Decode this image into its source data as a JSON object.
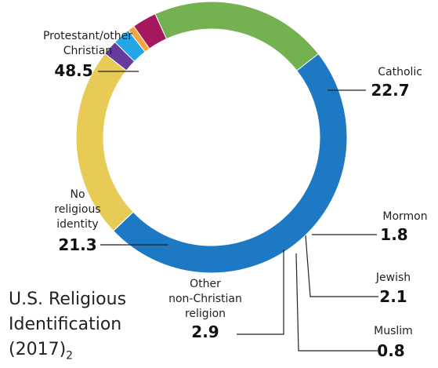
{
  "chart_data": {
    "type": "pie",
    "categories": [
      "Protestant/other Christian",
      "Catholic",
      "Mormon",
      "Jewish",
      "Muslim",
      "Other non-Christian religion",
      "No religious identity"
    ],
    "values": [
      48.5,
      22.7,
      1.8,
      2.1,
      0.8,
      2.9,
      21.3
    ],
    "value_labels": [
      "48.5",
      "22.7",
      "1.8",
      "2.1",
      "0.8",
      "2.9",
      "21.3"
    ],
    "colors": [
      "#1e79c4",
      "#e8ca57",
      "#673a9e",
      "#22a6e8",
      "#f7a43a",
      "#a6185d",
      "#74b150"
    ],
    "label_lines": [
      [
        "Protestant/other",
        "Christian"
      ],
      [
        "Catholic"
      ],
      [
        "Mormon"
      ],
      [
        "Jewish"
      ],
      [
        "Muslim"
      ],
      [
        "Other",
        "non-Christian",
        "religion"
      ],
      [
        "No",
        "religious",
        "identity"
      ]
    ],
    "donut": true
  },
  "caption": {
    "line1": "U.S. Religious",
    "line2": "Identification",
    "line3": "(2017)",
    "subscript": "2"
  }
}
